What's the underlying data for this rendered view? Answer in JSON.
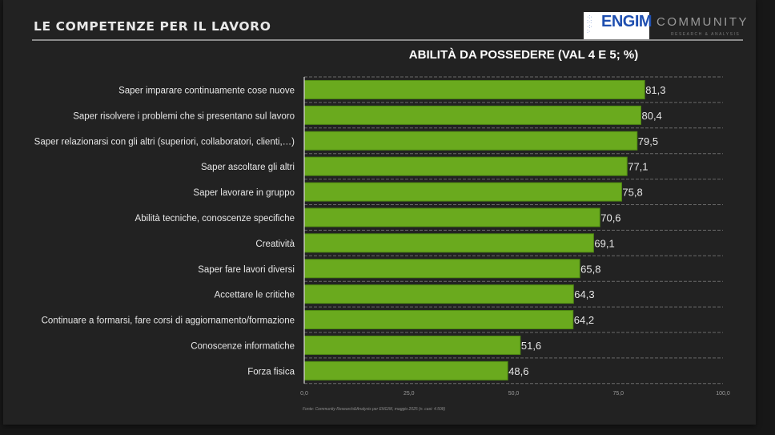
{
  "header": {
    "title": "LE COMPETENZE PER IL LAVORO",
    "logo_engim": "ENGIM",
    "logo_community": "COMMUNITY",
    "logo_community_sub": "RESEARCH & ANALYSIS"
  },
  "colors": {
    "bar": "#6aaa1e",
    "bar_edge": "#4f8a12",
    "background": "#222222",
    "text": "#e6e6e6"
  },
  "chart_data": {
    "type": "bar",
    "orientation": "horizontal",
    "title": "ABILITÀ DA POSSEDERE (VAL 4 E 5; %)",
    "categories": [
      "Saper imparare continuamente cose nuove",
      "Saper risolvere i problemi che si presentano sul lavoro",
      "Saper relazionarsi con gli altri (superiori, collaboratori, clienti,…)",
      "Saper ascoltare gli altri",
      "Saper lavorare in gruppo",
      "Abilità tecniche, conoscenze specifiche",
      "Creatività",
      "Saper fare lavori diversi",
      "Accettare le critiche",
      "Continuare a formarsi, fare corsi di aggiornamento/formazione",
      "Conoscenze informatiche",
      "Forza fisica"
    ],
    "values": [
      81.3,
      80.4,
      79.5,
      77.1,
      75.8,
      70.6,
      69.1,
      65.8,
      64.3,
      64.2,
      51.6,
      48.6
    ],
    "value_labels": [
      "81,3",
      "80,4",
      "79,5",
      "77,1",
      "75,8",
      "70,6",
      "69,1",
      "65,8",
      "64,3",
      "64,2",
      "51,6",
      "48,6"
    ],
    "xlim": [
      0,
      100
    ],
    "xticks": [
      0,
      25,
      50,
      75,
      100
    ],
    "xtick_labels": [
      "0,0",
      "25,0",
      "50,0",
      "75,0",
      "100,0"
    ],
    "xlabel": "",
    "ylabel": "",
    "grid": "horizontal dashed",
    "source": "Fonte: Community Research&Analysis per ENGIM, maggio 2025 (n. casi: 4.508)"
  }
}
